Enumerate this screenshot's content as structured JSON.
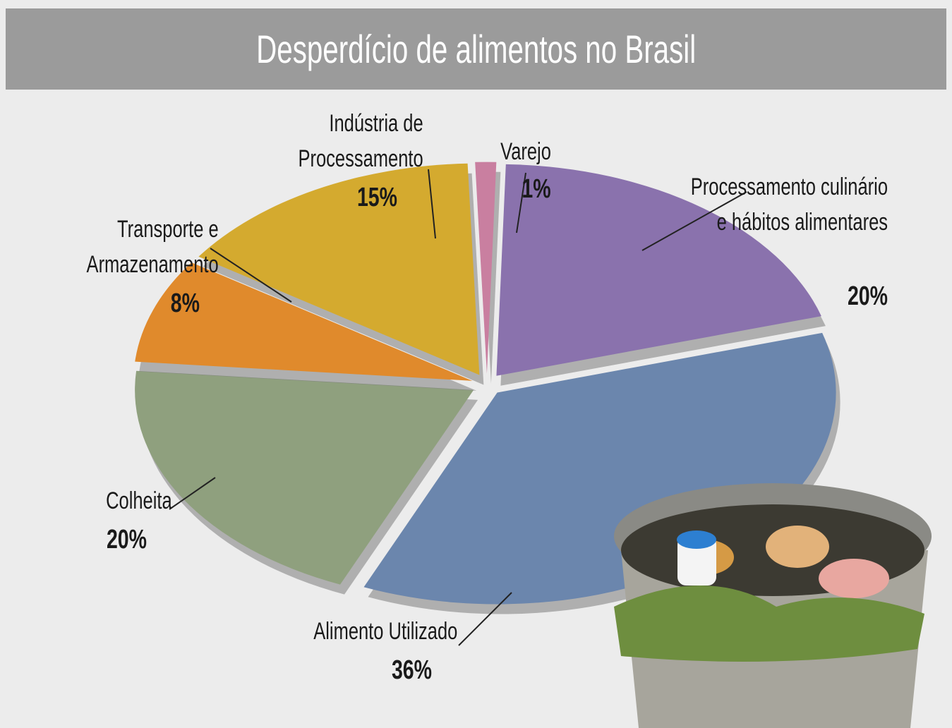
{
  "chart_data": {
    "type": "pie",
    "title": "Desperdício de alimentos no Brasil",
    "categories": [
      "Varejo",
      "Processamento culinário e hábitos alimentares",
      "Alimento Utilizado",
      "Colheita",
      "Transporte e Armazenamento",
      "Indústria de Processamento"
    ],
    "values": [
      1,
      20,
      36,
      20,
      8,
      15
    ],
    "value_labels": [
      "1%",
      "20%",
      "36%",
      "20%",
      "8%",
      "15%"
    ],
    "colors": [
      "#c97fa0",
      "#8a72ad",
      "#6b86ad",
      "#8fa07e",
      "#e08a2c",
      "#d4aa2f"
    ]
  }
}
